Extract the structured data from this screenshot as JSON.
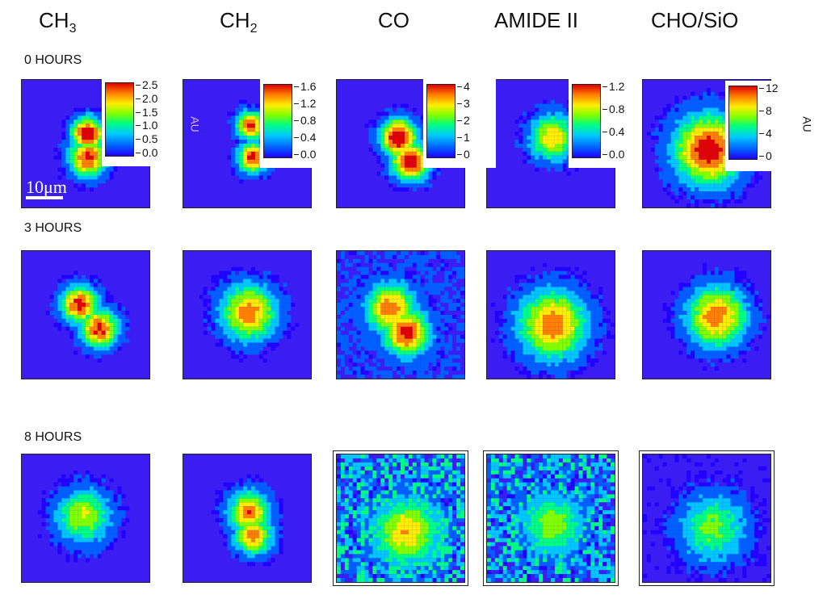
{
  "columns": [
    {
      "label": "CH",
      "sub": "3"
    },
    {
      "label": "CH",
      "sub": "2"
    },
    {
      "label": "CO",
      "sub": ""
    },
    {
      "label": "AMIDE II",
      "sub": ""
    },
    {
      "label": "CHO/SiO",
      "sub": ""
    }
  ],
  "rows": [
    "0 HOURS",
    "3 HOURS",
    "8 HOURS"
  ],
  "scale_bar": "10μm",
  "colorbar_unit": "AU",
  "colorbars": [
    {
      "ticks": [
        "2.5",
        "2.0",
        "1.5",
        "1.0",
        "0.5",
        "0.0"
      ]
    },
    {
      "ticks": [
        "1.6",
        "1.2",
        "0.8",
        "0.4",
        "0.0"
      ]
    },
    {
      "ticks": [
        "4",
        "3",
        "2",
        "1",
        "0"
      ]
    },
    {
      "ticks": [
        "1.2",
        "0.8",
        "0.4",
        "0.0"
      ]
    },
    {
      "ticks": [
        "12",
        "8",
        "4",
        "0"
      ]
    }
  ],
  "colors": {
    "background": "#3b1cf3",
    "low": "#2200ff",
    "high": "#e00000"
  }
}
